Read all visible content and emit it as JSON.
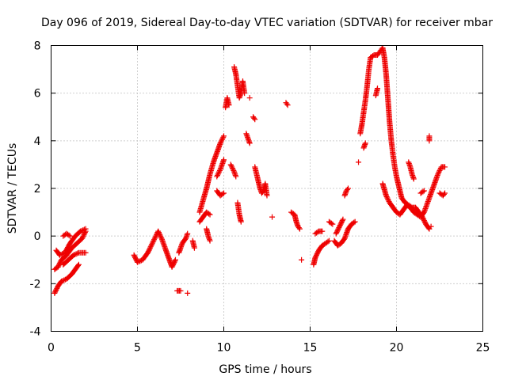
{
  "chart_data": {
    "type": "scatter",
    "title": "Day 096 of 2019, Sidereal Day-to-day VTEC variation (SDTVAR) for receiver mbar",
    "xlabel": "GPS time / hours",
    "ylabel": "SDTVAR / TECUs",
    "xlim": [
      0,
      25
    ],
    "ylim": [
      -4,
      8
    ],
    "xticks": [
      "0",
      "5",
      "10",
      "15",
      "20",
      "25"
    ],
    "yticks": [
      "-4",
      "-2",
      "0",
      "2",
      "4",
      "6",
      "8"
    ],
    "grid": true,
    "marker": "+",
    "color": "#ee0000",
    "segments": [
      [
        [
          0.2,
          -2.4
        ],
        [
          0.4,
          -2.1
        ],
        [
          0.6,
          -1.9
        ],
        [
          0.9,
          -1.8
        ],
        [
          1.2,
          -1.6
        ],
        [
          1.4,
          -1.4
        ],
        [
          1.6,
          -1.2
        ]
      ],
      [
        [
          0.2,
          -1.4
        ],
        [
          0.4,
          -1.3
        ],
        [
          0.6,
          -1.0
        ],
        [
          0.9,
          -0.8
        ],
        [
          1.2,
          -0.5
        ],
        [
          1.5,
          -0.3
        ],
        [
          1.8,
          -0.1
        ],
        [
          2.0,
          0.2
        ]
      ],
      [
        [
          0.3,
          -0.6
        ],
        [
          0.5,
          -0.8
        ],
        [
          0.8,
          -0.7
        ],
        [
          1.1,
          -0.3
        ],
        [
          1.4,
          0.0
        ],
        [
          1.7,
          0.2
        ],
        [
          2.0,
          0.3
        ]
      ],
      [
        [
          0.7,
          -1.2
        ],
        [
          1.0,
          -1.0
        ],
        [
          1.3,
          -0.8
        ],
        [
          1.6,
          -0.7
        ],
        [
          2.0,
          -0.7
        ]
      ],
      [
        [
          0.7,
          0.0
        ],
        [
          0.9,
          0.1
        ],
        [
          1.1,
          0.0
        ]
      ],
      [
        [
          4.8,
          -0.8
        ],
        [
          5.0,
          -1.1
        ],
        [
          5.3,
          -1.0
        ],
        [
          5.6,
          -0.7
        ],
        [
          5.8,
          -0.4
        ],
        [
          6.0,
          -0.1
        ],
        [
          6.2,
          0.2
        ],
        [
          6.4,
          -0.1
        ],
        [
          6.6,
          -0.5
        ],
        [
          6.8,
          -0.9
        ],
        [
          7.0,
          -1.3
        ],
        [
          7.2,
          -1.0
        ]
      ],
      [
        [
          7.4,
          -0.7
        ],
        [
          7.6,
          -0.3
        ],
        [
          7.8,
          -0.1
        ],
        [
          7.9,
          0.1
        ]
      ],
      [
        [
          7.3,
          -2.3
        ],
        [
          7.5,
          -2.3
        ]
      ],
      [
        [
          7.9,
          -2.4
        ]
      ],
      [
        [
          8.2,
          -0.2
        ],
        [
          8.3,
          -0.5
        ]
      ],
      [
        [
          8.6,
          1.0
        ],
        [
          8.8,
          1.5
        ],
        [
          9.0,
          2.0
        ],
        [
          9.2,
          2.6
        ],
        [
          9.4,
          3.1
        ],
        [
          9.6,
          3.5
        ],
        [
          9.8,
          3.9
        ],
        [
          10.0,
          4.2
        ]
      ],
      [
        [
          8.6,
          0.6
        ],
        [
          8.8,
          0.8
        ],
        [
          9.0,
          1.0
        ],
        [
          9.2,
          0.9
        ]
      ],
      [
        [
          9.0,
          0.3
        ],
        [
          9.1,
          0.0
        ],
        [
          9.2,
          -0.2
        ]
      ],
      [
        [
          9.6,
          2.5
        ],
        [
          9.8,
          2.8
        ],
        [
          10.0,
          3.2
        ]
      ],
      [
        [
          9.6,
          1.9
        ],
        [
          9.8,
          1.7
        ],
        [
          10.0,
          1.8
        ]
      ],
      [
        [
          10.1,
          5.4
        ],
        [
          10.2,
          5.8
        ],
        [
          10.3,
          5.5
        ]
      ],
      [
        [
          10.4,
          3.0
        ],
        [
          10.6,
          2.7
        ],
        [
          10.7,
          2.5
        ]
      ],
      [
        [
          10.6,
          7.1
        ],
        [
          10.7,
          6.8
        ],
        [
          10.8,
          6.3
        ],
        [
          10.9,
          5.8
        ],
        [
          11.0,
          6.0
        ],
        [
          11.1,
          6.5
        ],
        [
          11.2,
          6.0
        ]
      ],
      [
        [
          10.8,
          1.4
        ],
        [
          10.9,
          0.9
        ],
        [
          11.0,
          0.6
        ]
      ],
      [
        [
          11.3,
          4.3
        ],
        [
          11.4,
          4.1
        ],
        [
          11.5,
          3.9
        ]
      ],
      [
        [
          11.5,
          5.8
        ]
      ],
      [
        [
          11.7,
          5.0
        ],
        [
          11.8,
          4.9
        ]
      ],
      [
        [
          11.8,
          2.9
        ],
        [
          11.9,
          2.6
        ],
        [
          12.0,
          2.3
        ],
        [
          12.1,
          2.0
        ],
        [
          12.2,
          1.8
        ],
        [
          12.3,
          1.9
        ],
        [
          12.4,
          2.2
        ],
        [
          12.5,
          1.7
        ]
      ],
      [
        [
          12.8,
          0.8
        ]
      ],
      [
        [
          13.6,
          5.6
        ],
        [
          13.7,
          5.5
        ]
      ],
      [
        [
          13.9,
          1.0
        ],
        [
          14.1,
          0.9
        ],
        [
          14.2,
          0.6
        ],
        [
          14.3,
          0.4
        ],
        [
          14.4,
          0.3
        ]
      ],
      [
        [
          14.5,
          -1.0
        ]
      ],
      [
        [
          15.2,
          -1.2
        ],
        [
          15.3,
          -0.9
        ],
        [
          15.5,
          -0.6
        ],
        [
          15.7,
          -0.4
        ],
        [
          15.9,
          -0.3
        ],
        [
          16.1,
          -0.2
        ]
      ],
      [
        [
          15.3,
          0.1
        ],
        [
          15.5,
          0.2
        ],
        [
          15.7,
          0.2
        ]
      ],
      [
        [
          16.1,
          0.6
        ],
        [
          16.3,
          0.5
        ]
      ],
      [
        [
          16.4,
          -0.2
        ],
        [
          16.6,
          -0.4
        ],
        [
          16.8,
          -0.3
        ],
        [
          17.0,
          -0.1
        ],
        [
          17.2,
          0.3
        ],
        [
          17.4,
          0.5
        ],
        [
          17.6,
          0.6
        ]
      ],
      [
        [
          16.5,
          0.1
        ],
        [
          16.7,
          0.4
        ],
        [
          16.9,
          0.7
        ]
      ],
      [
        [
          17.0,
          1.7
        ],
        [
          17.1,
          1.9
        ],
        [
          17.2,
          2.0
        ]
      ],
      [
        [
          17.8,
          3.1
        ]
      ],
      [
        [
          17.9,
          4.3
        ],
        [
          18.0,
          4.7
        ],
        [
          18.1,
          5.2
        ],
        [
          18.2,
          5.7
        ],
        [
          18.3,
          6.3
        ],
        [
          18.4,
          7.0
        ],
        [
          18.5,
          7.5
        ],
        [
          18.7,
          7.6
        ],
        [
          18.9,
          7.6
        ],
        [
          19.0,
          7.7
        ],
        [
          19.1,
          7.8
        ],
        [
          19.2,
          7.9
        ],
        [
          19.3,
          7.5
        ],
        [
          19.4,
          6.8
        ],
        [
          19.5,
          5.8
        ],
        [
          19.6,
          4.8
        ],
        [
          19.7,
          4.0
        ],
        [
          19.8,
          3.4
        ],
        [
          19.9,
          2.9
        ],
        [
          20.0,
          2.5
        ],
        [
          20.1,
          2.2
        ],
        [
          20.2,
          1.9
        ],
        [
          20.3,
          1.6
        ],
        [
          20.5,
          1.4
        ],
        [
          20.7,
          1.3
        ],
        [
          20.9,
          1.2
        ],
        [
          21.1,
          1.2
        ],
        [
          21.3,
          1.0
        ],
        [
          21.5,
          0.8
        ],
        [
          21.7,
          0.5
        ],
        [
          21.9,
          0.3
        ]
      ],
      [
        [
          18.1,
          3.7
        ],
        [
          18.2,
          3.9
        ]
      ],
      [
        [
          18.8,
          5.9
        ],
        [
          18.9,
          6.2
        ]
      ],
      [
        [
          19.2,
          2.2
        ],
        [
          19.4,
          1.7
        ],
        [
          19.6,
          1.4
        ],
        [
          19.8,
          1.2
        ],
        [
          20.0,
          1.0
        ],
        [
          20.2,
          0.9
        ],
        [
          20.4,
          1.1
        ],
        [
          20.6,
          1.3
        ],
        [
          20.8,
          1.2
        ],
        [
          21.0,
          1.0
        ],
        [
          21.2,
          0.9
        ],
        [
          21.4,
          0.8
        ],
        [
          21.6,
          1.0
        ],
        [
          21.8,
          1.4
        ],
        [
          22.0,
          1.8
        ],
        [
          22.2,
          2.2
        ],
        [
          22.4,
          2.6
        ],
        [
          22.6,
          2.9
        ],
        [
          22.8,
          2.9
        ]
      ],
      [
        [
          20.7,
          3.1
        ],
        [
          20.8,
          2.9
        ],
        [
          20.9,
          2.6
        ],
        [
          21.0,
          2.4
        ]
      ],
      [
        [
          21.4,
          1.8
        ],
        [
          21.6,
          1.9
        ]
      ],
      [
        [
          21.9,
          4.2
        ],
        [
          21.9,
          4.0
        ]
      ],
      [
        [
          22.0,
          0.4
        ]
      ],
      [
        [
          22.5,
          1.8
        ],
        [
          22.7,
          1.7
        ],
        [
          22.8,
          1.8
        ]
      ]
    ]
  }
}
